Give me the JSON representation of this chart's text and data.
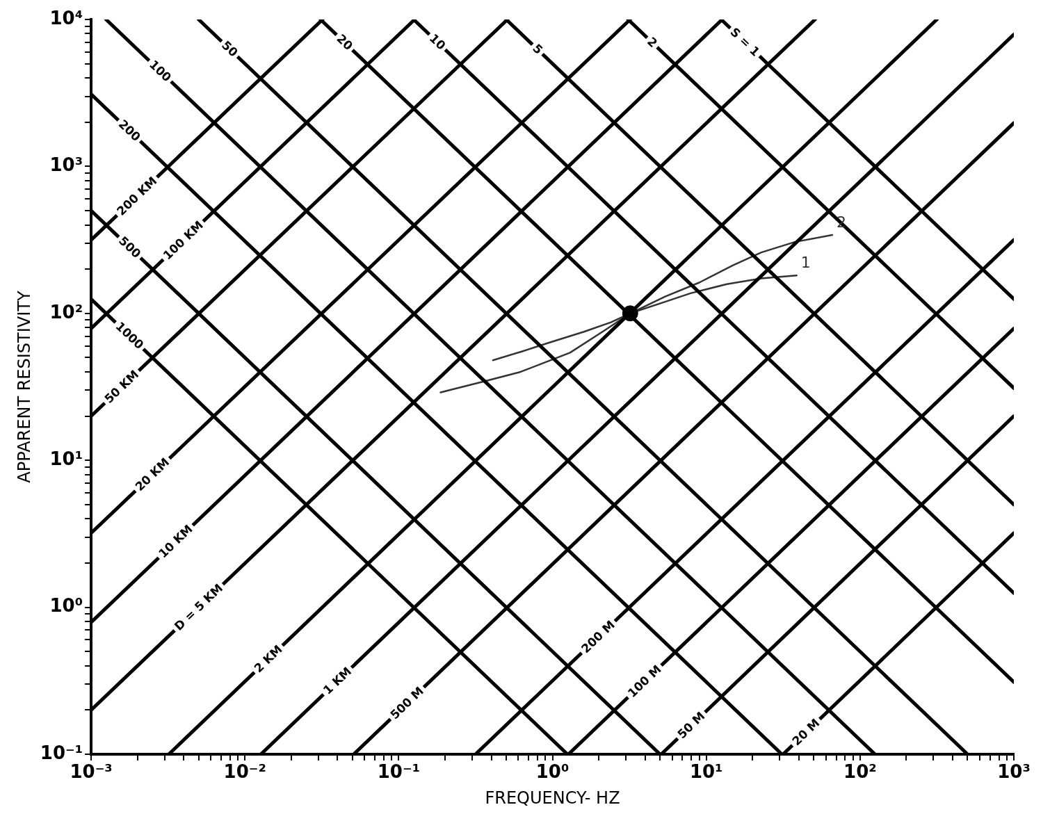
{
  "chart_data": {
    "type": "line",
    "xlabel": "FREQUENCY- HZ",
    "ylabel": "APPARENT RESISTIVITY",
    "log": "xy",
    "grid": false,
    "legend": false,
    "marker": "none",
    "line_style": "solid",
    "xlim": [
      0.001,
      1000
    ],
    "ylim": [
      0.1,
      10000
    ],
    "xticks": [
      {
        "value": 0.001,
        "label": "10⁻³"
      },
      {
        "value": 0.002,
        "label": null
      },
      {
        "value": 0.003,
        "label": null
      },
      {
        "value": 0.004,
        "label": null
      },
      {
        "value": 0.005,
        "label": null
      },
      {
        "value": 0.006,
        "label": null
      },
      {
        "value": 0.007,
        "label": null
      },
      {
        "value": 0.008,
        "label": null
      },
      {
        "value": 0.009,
        "label": null
      },
      {
        "value": 0.01,
        "label": "10⁻²"
      },
      {
        "value": 0.02,
        "label": null
      },
      {
        "value": 0.03,
        "label": null
      },
      {
        "value": 0.04,
        "label": null
      },
      {
        "value": 0.05,
        "label": null
      },
      {
        "value": 0.06,
        "label": null
      },
      {
        "value": 0.07,
        "label": null
      },
      {
        "value": 0.08,
        "label": null
      },
      {
        "value": 0.09,
        "label": null
      },
      {
        "value": 0.1,
        "label": "10⁻¹"
      },
      {
        "value": 0.2,
        "label": null
      },
      {
        "value": 0.3,
        "label": null
      },
      {
        "value": 0.4,
        "label": null
      },
      {
        "value": 0.5,
        "label": null
      },
      {
        "value": 0.6,
        "label": null
      },
      {
        "value": 0.7,
        "label": null
      },
      {
        "value": 0.8,
        "label": null
      },
      {
        "value": 0.9,
        "label": null
      },
      {
        "value": 1,
        "label": "10⁰"
      },
      {
        "value": 2,
        "label": null
      },
      {
        "value": 3,
        "label": null
      },
      {
        "value": 4,
        "label": null
      },
      {
        "value": 5,
        "label": null
      },
      {
        "value": 6,
        "label": null
      },
      {
        "value": 7,
        "label": null
      },
      {
        "value": 8,
        "label": null
      },
      {
        "value": 9,
        "label": null
      },
      {
        "value": 10,
        "label": "10¹"
      },
      {
        "value": 20,
        "label": null
      },
      {
        "value": 30,
        "label": null
      },
      {
        "value": 40,
        "label": null
      },
      {
        "value": 50,
        "label": null
      },
      {
        "value": 60,
        "label": null
      },
      {
        "value": 70,
        "label": null
      },
      {
        "value": 80,
        "label": null
      },
      {
        "value": 90,
        "label": null
      },
      {
        "value": 100,
        "label": "10²"
      },
      {
        "value": 200,
        "label": null
      },
      {
        "value": 300,
        "label": null
      },
      {
        "value": 400,
        "label": null
      },
      {
        "value": 500,
        "label": null
      },
      {
        "value": 600,
        "label": null
      },
      {
        "value": 700,
        "label": null
      },
      {
        "value": 800,
        "label": null
      },
      {
        "value": 900,
        "label": null
      },
      {
        "value": 1000,
        "label": "10³"
      }
    ],
    "yticks": [
      {
        "value": 0.1,
        "label": "10⁻¹"
      },
      {
        "value": 0.2,
        "label": null
      },
      {
        "value": 0.3,
        "label": null
      },
      {
        "value": 0.4,
        "label": null
      },
      {
        "value": 0.5,
        "label": null
      },
      {
        "value": 0.6,
        "label": null
      },
      {
        "value": 0.7,
        "label": null
      },
      {
        "value": 0.8,
        "label": null
      },
      {
        "value": 0.9,
        "label": null
      },
      {
        "value": 1,
        "label": "10⁰"
      },
      {
        "value": 2,
        "label": null
      },
      {
        "value": 3,
        "label": null
      },
      {
        "value": 4,
        "label": null
      },
      {
        "value": 5,
        "label": null
      },
      {
        "value": 6,
        "label": null
      },
      {
        "value": 7,
        "label": null
      },
      {
        "value": 8,
        "label": null
      },
      {
        "value": 9,
        "label": null
      },
      {
        "value": 10,
        "label": "10¹"
      },
      {
        "value": 20,
        "label": null
      },
      {
        "value": 30,
        "label": null
      },
      {
        "value": 40,
        "label": null
      },
      {
        "value": 50,
        "label": null
      },
      {
        "value": 60,
        "label": null
      },
      {
        "value": 70,
        "label": null
      },
      {
        "value": 80,
        "label": null
      },
      {
        "value": 90,
        "label": null
      },
      {
        "value": 100,
        "label": "10²"
      },
      {
        "value": 200,
        "label": null
      },
      {
        "value": 300,
        "label": null
      },
      {
        "value": 400,
        "label": null
      },
      {
        "value": 500,
        "label": null
      },
      {
        "value": 600,
        "label": null
      },
      {
        "value": 700,
        "label": null
      },
      {
        "value": 800,
        "label": null
      },
      {
        "value": 900,
        "label": null
      },
      {
        "value": 1000,
        "label": "10³"
      },
      {
        "value": 2000,
        "label": null
      },
      {
        "value": 3000,
        "label": null
      },
      {
        "value": 4000,
        "label": null
      },
      {
        "value": 5000,
        "label": null
      },
      {
        "value": 6000,
        "label": null
      },
      {
        "value": 7000,
        "label": null
      },
      {
        "value": 8000,
        "label": null
      },
      {
        "value": 9000,
        "label": null
      },
      {
        "value": 10000,
        "label": "10⁴"
      }
    ],
    "series": [
      {
        "name": "200 KM",
        "color": "#000000",
        "x": [
          0.001,
          0.032
        ],
        "values": [
          316,
          10000
        ]
      },
      {
        "name": "100 KM",
        "color": "#000000",
        "x": [
          0.001,
          0.127
        ],
        "values": [
          79,
          10000
        ]
      },
      {
        "name": "50 KM",
        "color": "#000000",
        "x": [
          0.001,
          0.51
        ],
        "values": [
          20,
          10000
        ]
      },
      {
        "name": "20 KM",
        "color": "#000000",
        "x": [
          0.001,
          3.2
        ],
        "values": [
          3.2,
          10000
        ]
      },
      {
        "name": "10 KM",
        "color": "#000000",
        "x": [
          0.001,
          12.7
        ],
        "values": [
          0.79,
          10000
        ]
      },
      {
        "name": "D = 5 KM",
        "color": "#000000",
        "x": [
          0.001,
          51
        ],
        "values": [
          0.2,
          10000
        ]
      },
      {
        "name": "2 KM",
        "color": "#000000",
        "x": [
          0.0032,
          316
        ],
        "values": [
          0.1,
          10000
        ]
      },
      {
        "name": "1 KM",
        "color": "#000000",
        "x": [
          0.0127,
          1000
        ],
        "values": [
          0.1,
          7900
        ]
      },
      {
        "name": "500 M",
        "color": "#000000",
        "x": [
          0.051,
          1000
        ],
        "values": [
          0.1,
          1975
        ]
      },
      {
        "name": "200 M",
        "color": "#000000",
        "x": [
          0.316,
          1000
        ],
        "values": [
          0.1,
          316
        ]
      },
      {
        "name": "100 M",
        "color": "#000000",
        "x": [
          1.27,
          1000
        ],
        "values": [
          0.1,
          79
        ]
      },
      {
        "name": "50 M",
        "color": "#000000",
        "x": [
          5.1,
          1000
        ],
        "values": [
          0.1,
          20
        ]
      },
      {
        "name": "20 M",
        "color": "#000000",
        "x": [
          31.6,
          1000
        ],
        "values": [
          0.1,
          3.2
        ]
      },
      {
        "name": "1000",
        "color": "#000000",
        "x": [
          0.001,
          1.25
        ],
        "values": [
          125,
          0.1
        ]
      },
      {
        "name": "500",
        "color": "#000000",
        "x": [
          0.001,
          5
        ],
        "values": [
          500,
          0.1
        ]
      },
      {
        "name": "200",
        "color": "#000000",
        "x": [
          0.001,
          31
        ],
        "values": [
          3100,
          0.1
        ]
      },
      {
        "name": "100",
        "color": "#000000",
        "x": [
          0.00125,
          125
        ],
        "values": [
          10000,
          0.1
        ]
      },
      {
        "name": "50",
        "color": "#000000",
        "x": [
          0.005,
          500
        ],
        "values": [
          10000,
          0.1
        ]
      },
      {
        "name": "20",
        "color": "#000000",
        "x": [
          0.031,
          1000
        ],
        "values": [
          10000,
          0.31
        ]
      },
      {
        "name": "10",
        "color": "#000000",
        "x": [
          0.125,
          1000
        ],
        "values": [
          10000,
          1.25
        ]
      },
      {
        "name": "5",
        "color": "#000000",
        "x": [
          0.5,
          1000
        ],
        "values": [
          10000,
          5
        ]
      },
      {
        "name": "2",
        "color": "#000000",
        "x": [
          3.1,
          1000
        ],
        "values": [
          10000,
          31
        ]
      },
      {
        "name": "S = 1",
        "color": "#000000",
        "x": [
          12.5,
          1000
        ],
        "values": [
          10000,
          125
        ]
      },
      {
        "name": "1",
        "color": "#333333",
        "x": [
          0.187,
          0.38,
          0.62,
          1.3,
          2.2,
          3.2,
          5.4,
          7.9,
          13.6,
          22.8,
          38.7
        ],
        "values": [
          29,
          35,
          40,
          54,
          77,
          100,
          120,
          137,
          158,
          173,
          181
        ]
      },
      {
        "name": "2",
        "color": "#333333",
        "x": [
          0.41,
          0.63,
          0.94,
          1.6,
          2.4,
          3.2,
          5.4,
          9,
          15,
          22.8,
          37.6,
          66
        ],
        "values": [
          48,
          55,
          63,
          75,
          87,
          100,
          130,
          162,
          213,
          260,
          306,
          342
        ]
      },
      {
        "type": "scatter",
        "marker": "circle",
        "color": "#000000",
        "x": [
          3.2
        ],
        "values": [
          100
        ]
      }
    ]
  }
}
